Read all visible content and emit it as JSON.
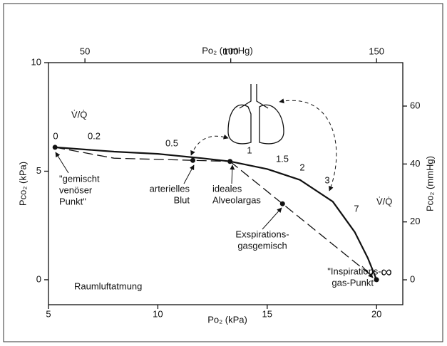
{
  "chart_data": {
    "type": "line",
    "title_top_axis": "Po₂ (mmHg)",
    "x_label": "Po₂ (kPa)",
    "y_label": "Pco₂ (kPa)",
    "y2_label": "Pco₂ (mmHg)",
    "xlim": [
      5,
      21.2
    ],
    "xticks": [
      5,
      10,
      15,
      20
    ],
    "x2lim": [
      37.5,
      159
    ],
    "x2ticks": [
      50,
      100,
      150
    ],
    "ylim": [
      -1.15,
      10
    ],
    "yticks": [
      0,
      5,
      10
    ],
    "y2lim": [
      -8.6,
      75
    ],
    "y2ticks": [
      0,
      20,
      40,
      60
    ],
    "series": [
      {
        "color": "#111111",
        "style": "solid",
        "x": [
          5.3,
          8,
          10,
          12,
          13.3,
          15,
          16.5,
          18,
          19,
          19.6,
          20
        ],
        "values": [
          6.1,
          5.9,
          5.8,
          5.6,
          5.45,
          5.1,
          4.6,
          3.6,
          2.2,
          1.0,
          0
        ]
      },
      {
        "color": "#111111",
        "style": "dashed",
        "x": [
          5.3,
          8,
          11.6,
          13.3
        ],
        "values": [
          6.1,
          5.6,
          5.5,
          5.45
        ]
      },
      {
        "color": "#111111",
        "style": "dashed",
        "x": [
          13.3,
          15.7,
          20
        ],
        "values": [
          5.45,
          3.5,
          0
        ]
      }
    ],
    "points": {
      "x": [
        5.3,
        11.6,
        13.3,
        15.7,
        20
      ],
      "values": [
        6.1,
        5.5,
        5.45,
        3.5,
        0
      ]
    },
    "vq_symbol": "V̇/Q̇",
    "vq_labels": [
      "0",
      "0.2",
      "0.5",
      "1",
      "1.5",
      "2",
      "3",
      "7",
      "∞"
    ],
    "annotations": {
      "mixed_venous": [
        "\"gemischt",
        "venöser",
        "Punkt\""
      ],
      "arterial": [
        "arterielles",
        "Blut"
      ],
      "alveolar": [
        "ideales",
        "Alveolargas"
      ],
      "expiration": [
        "Exspirations-",
        "gasgemisch"
      ],
      "inspiration": [
        "\"Inspirations-",
        "gas-Punkt\""
      ],
      "condition": "Raumluftatmung"
    }
  }
}
